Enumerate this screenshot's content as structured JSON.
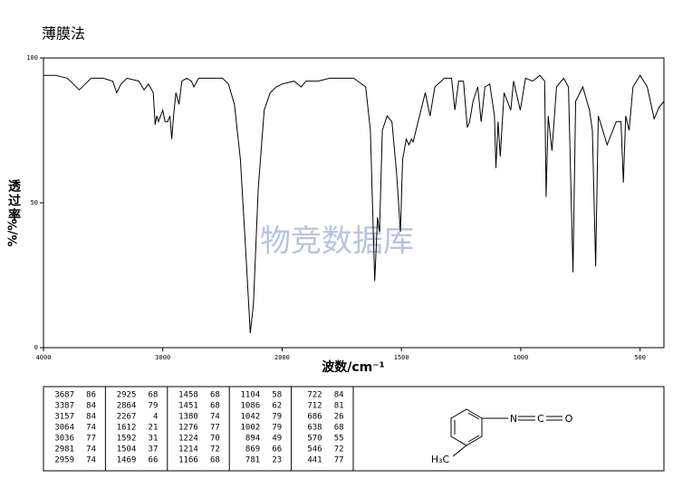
{
  "chart_data": {
    "type": "line",
    "title": "薄膜法",
    "xlabel": "波数/cm⁻¹",
    "ylabel": "透过率",
    "yunit": "%/%",
    "watermark": "物竞数据库",
    "color": "#000000",
    "xlim": [
      4000,
      400
    ],
    "x_break": 2000,
    "x_break_factor": 2,
    "xticks": [
      4000,
      3000,
      2000,
      1500,
      1000,
      500
    ],
    "ylim": [
      0,
      100
    ],
    "yticks": [
      0,
      50,
      100
    ],
    "x": [
      4000,
      3900,
      3800,
      3750,
      3700,
      3650,
      3600,
      3500,
      3420,
      3387,
      3350,
      3300,
      3200,
      3157,
      3120,
      3080,
      3064,
      3050,
      3036,
      3000,
      2981,
      2959,
      2940,
      2925,
      2910,
      2890,
      2864,
      2840,
      2800,
      2760,
      2740,
      2700,
      2600,
      2500,
      2450,
      2400,
      2350,
      2300,
      2267,
      2240,
      2200,
      2150,
      2100,
      2050,
      2000,
      1950,
      1920,
      1900,
      1850,
      1800,
      1750,
      1700,
      1650,
      1630,
      1612,
      1600,
      1592,
      1580,
      1560,
      1540,
      1520,
      1504,
      1495,
      1480,
      1469,
      1458,
      1451,
      1430,
      1400,
      1380,
      1360,
      1320,
      1290,
      1276,
      1260,
      1240,
      1224,
      1214,
      1200,
      1180,
      1166,
      1150,
      1130,
      1110,
      1104,
      1095,
      1086,
      1070,
      1042,
      1030,
      1002,
      980,
      950,
      920,
      900,
      894,
      885,
      869,
      850,
      820,
      800,
      781,
      770,
      740,
      712,
      700,
      686,
      675,
      660,
      638,
      600,
      580,
      570,
      560,
      546,
      530,
      500,
      470,
      441,
      420,
      400
    ],
    "values": [
      94,
      94,
      93,
      91,
      89,
      91,
      93,
      93,
      92,
      88,
      91,
      93,
      92,
      89,
      91,
      88,
      77,
      80,
      78,
      82,
      78,
      78,
      80,
      72,
      80,
      88,
      84,
      92,
      93,
      92,
      90,
      93,
      93,
      93,
      91,
      84,
      65,
      30,
      5,
      15,
      55,
      82,
      88,
      90,
      91,
      92,
      90,
      92,
      92,
      93,
      93,
      93,
      90,
      75,
      23,
      45,
      40,
      75,
      80,
      78,
      60,
      40,
      65,
      72,
      70,
      72,
      71,
      78,
      88,
      80,
      90,
      93,
      93,
      82,
      92,
      92,
      76,
      78,
      85,
      90,
      78,
      90,
      91,
      80,
      62,
      78,
      66,
      88,
      82,
      92,
      82,
      93,
      92,
      94,
      92,
      52,
      80,
      68,
      90,
      93,
      90,
      26,
      85,
      90,
      82,
      75,
      28,
      80,
      76,
      70,
      78,
      78,
      57,
      80,
      75,
      90,
      94,
      90,
      79,
      83,
      85
    ],
    "peak_table": [
      [
        3687,
        86
      ],
      [
        3387,
        84
      ],
      [
        3157,
        84
      ],
      [
        3064,
        74
      ],
      [
        3036,
        77
      ],
      [
        2981,
        74
      ],
      [
        2959,
        74
      ],
      [
        2925,
        68
      ],
      [
        2864,
        79
      ],
      [
        2267,
        4
      ],
      [
        1612,
        21
      ],
      [
        1592,
        31
      ],
      [
        1504,
        37
      ],
      [
        1469,
        66
      ],
      [
        1458,
        68
      ],
      [
        1451,
        68
      ],
      [
        1380,
        74
      ],
      [
        1276,
        77
      ],
      [
        1224,
        70
      ],
      [
        1214,
        72
      ],
      [
        1166,
        68
      ],
      [
        1104,
        58
      ],
      [
        1086,
        62
      ],
      [
        1042,
        79
      ],
      [
        1002,
        79
      ],
      [
        894,
        49
      ],
      [
        869,
        66
      ],
      [
        781,
        23
      ],
      [
        722,
        84
      ],
      [
        712,
        81
      ],
      [
        686,
        26
      ],
      [
        638,
        68
      ],
      [
        570,
        55
      ],
      [
        546,
        72
      ],
      [
        441,
        77
      ]
    ],
    "structure": {
      "atoms": [
        "N",
        "C",
        "O",
        "H₃C"
      ]
    }
  }
}
